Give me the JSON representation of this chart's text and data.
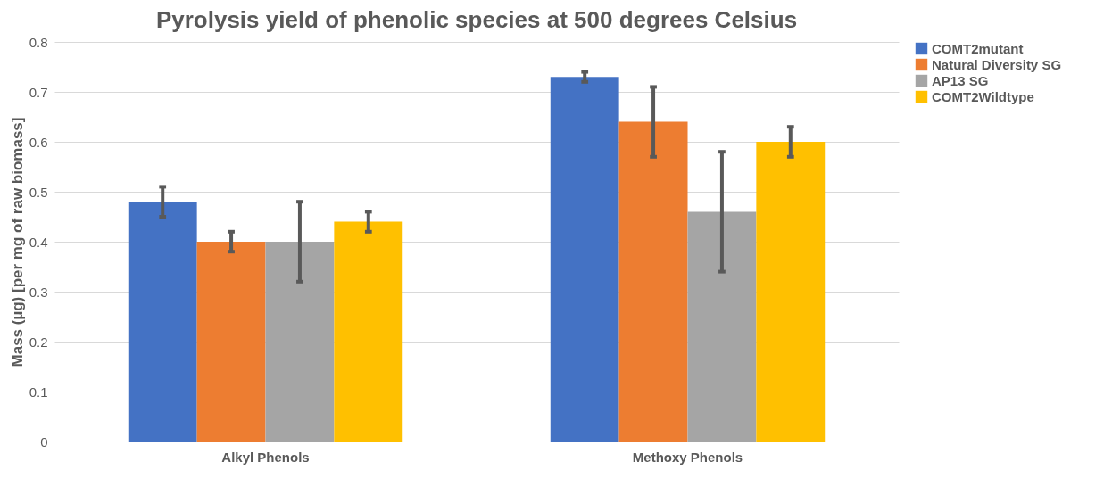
{
  "chart_data": {
    "type": "bar",
    "title": "Pyrolysis yield of phenolic species at 500 degrees Celsius",
    "ylabel": "Mass (µg) [per mg of raw biomass]",
    "categories": [
      "Alkyl Phenols",
      "Methoxy Phenols"
    ],
    "series": [
      {
        "name": "COMT2mutant",
        "color": "#4472c4",
        "values": [
          0.48,
          0.73
        ],
        "errors": [
          0.03,
          0.01
        ]
      },
      {
        "name": "Natural Diversity SG",
        "color": "#ed7d31",
        "values": [
          0.4,
          0.64
        ],
        "errors": [
          0.02,
          0.07
        ]
      },
      {
        "name": "AP13 SG",
        "color": "#a5a5a5",
        "values": [
          0.4,
          0.46
        ],
        "errors": [
          0.08,
          0.12
        ]
      },
      {
        "name": "COMT2Wildtype",
        "color": "#ffc000",
        "values": [
          0.44,
          0.6
        ],
        "errors": [
          0.02,
          0.03
        ]
      }
    ],
    "ylim": [
      0,
      0.8
    ],
    "yticks": [
      0,
      0.1,
      0.2,
      0.3,
      0.4,
      0.5,
      0.6,
      0.7,
      0.8
    ],
    "grid": "y",
    "legend": "right"
  }
}
